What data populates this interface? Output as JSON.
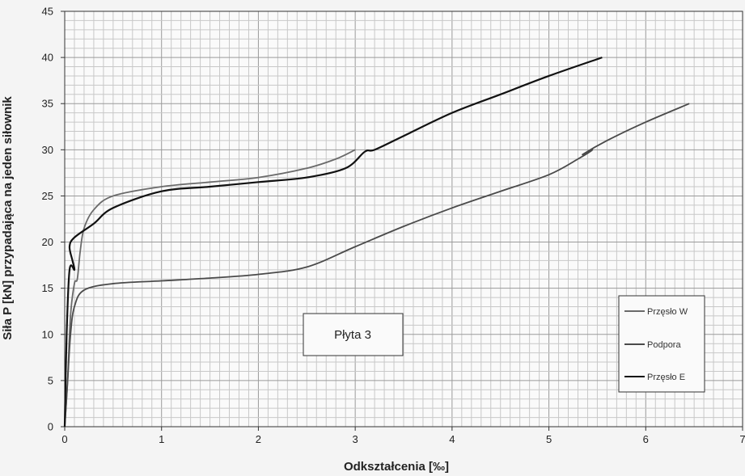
{
  "chart_data": {
    "type": "line",
    "title": "",
    "xlabel": "Odkształcenia  [‰]",
    "ylabel": "Siła P [kN] przypadająca na jeden siłownik",
    "xlim": [
      0,
      7
    ],
    "ylim": [
      0,
      45
    ],
    "x_ticks": [
      0,
      1,
      2,
      3,
      4,
      5,
      6,
      7
    ],
    "y_ticks": [
      0,
      5,
      10,
      15,
      20,
      25,
      30,
      35,
      40,
      45
    ],
    "grid": true,
    "legend_position": "bottom-right",
    "annotation": "Płyta 3",
    "series": [
      {
        "name": "Przęsło W",
        "color": "#6a6a6a",
        "x": [
          0,
          0.03,
          0.06,
          0.1,
          0.13,
          0.16,
          0.2,
          0.3,
          0.5,
          1.0,
          1.5,
          2.0,
          2.5,
          2.8,
          3.0
        ],
        "y": [
          0,
          5,
          12,
          15.5,
          16,
          19,
          21.5,
          23.5,
          25,
          26,
          26.5,
          27,
          28,
          29,
          30
        ]
      },
      {
        "name": "Podpora",
        "color": "#4a4a4a",
        "x": [
          0,
          0.03,
          0.06,
          0.1,
          0.2,
          0.5,
          1.0,
          1.5,
          2.0,
          2.5,
          3.0,
          3.5,
          4.0,
          4.5,
          5.0,
          5.3,
          5.45,
          5.35,
          5.6,
          6.0,
          6.45
        ],
        "y": [
          0,
          5,
          10,
          13,
          14.8,
          15.5,
          15.8,
          16.1,
          16.5,
          17.3,
          19.5,
          21.7,
          23.7,
          25.5,
          27.3,
          29,
          30,
          29.5,
          31,
          33,
          35
        ]
      },
      {
        "name": "Przęsło E",
        "color": "#111111",
        "x": [
          0,
          0.02,
          0.05,
          0.1,
          0.08,
          0.05,
          0.1,
          0.3,
          0.5,
          1.0,
          1.5,
          2.0,
          2.5,
          2.9,
          3.1,
          3.2,
          3.5,
          4.0,
          4.5,
          5.0,
          5.55
        ],
        "y": [
          0,
          10,
          17,
          17,
          18,
          19.5,
          20.5,
          22,
          23.7,
          25.5,
          26,
          26.5,
          27,
          28,
          29.8,
          30,
          31.5,
          34,
          36,
          38,
          40
        ]
      }
    ]
  }
}
